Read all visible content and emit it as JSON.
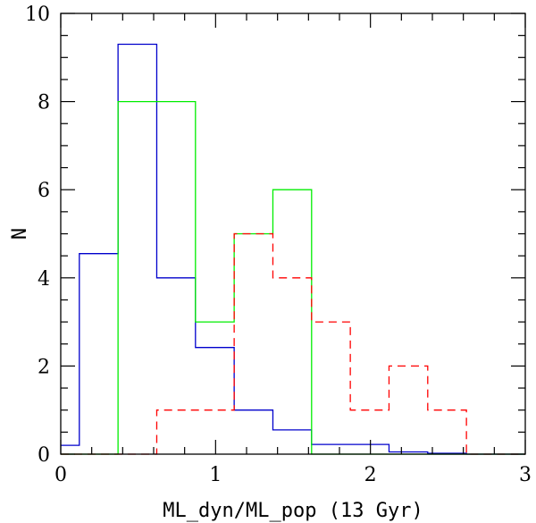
{
  "chart_data": {
    "type": "histogram",
    "xlabel": "ML_dyn/ML_pop (13 Gyr)",
    "ylabel": "N",
    "xlim": [
      0,
      3
    ],
    "ylim": [
      0,
      10
    ],
    "x_ticks": [
      "0",
      "1",
      "2",
      "3"
    ],
    "y_ticks": [
      "0",
      "2",
      "4",
      "6",
      "8",
      "10"
    ],
    "grid": false,
    "series": [
      {
        "color": "#0000cc",
        "linestyle": "solid",
        "edges": [
          0,
          0.12,
          0.37,
          0.62,
          0.87,
          1.12,
          1.37,
          1.62,
          1.87,
          2.12,
          2.37,
          2.62,
          3
        ],
        "values": [
          0.2,
          4.55,
          9.3,
          4.0,
          2.42,
          1.0,
          0.55,
          0.22,
          0.22,
          0.05,
          0.02,
          0.0
        ]
      },
      {
        "color": "#00ee00",
        "linestyle": "solid",
        "edges": [
          0,
          0.37,
          0.62,
          0.87,
          1.12,
          1.37,
          1.62,
          3
        ],
        "values": [
          0,
          8,
          8,
          3,
          5,
          6,
          0
        ]
      },
      {
        "color": "#ff0000",
        "linestyle": "dashed",
        "edges": [
          0,
          0.62,
          0.87,
          1.12,
          1.37,
          1.62,
          1.87,
          2.12,
          2.37,
          2.62,
          3
        ],
        "values": [
          0,
          1,
          1,
          5,
          4,
          3,
          1,
          2,
          1,
          0
        ]
      }
    ]
  }
}
